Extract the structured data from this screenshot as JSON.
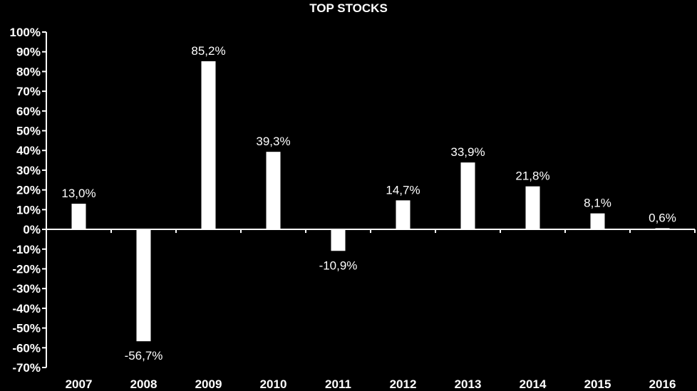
{
  "chart_data": {
    "type": "bar",
    "title": "TOP STOCKS",
    "xlabel": "",
    "ylabel": "",
    "categories": [
      "2007",
      "2008",
      "2009",
      "2010",
      "2011",
      "2012",
      "2013",
      "2014",
      "2015",
      "2016"
    ],
    "values": [
      13.0,
      -56.7,
      85.2,
      39.3,
      -10.9,
      14.7,
      33.9,
      21.8,
      8.1,
      0.6
    ],
    "data_labels": [
      "13,0%",
      "-56,7%",
      "85,2%",
      "39,3%",
      "-10,9%",
      "14,7%",
      "33,9%",
      "21,8%",
      "8,1%",
      "0,6%"
    ],
    "ylim": [
      -70,
      100
    ],
    "yticks": [
      100,
      90,
      80,
      70,
      60,
      50,
      40,
      30,
      20,
      10,
      0,
      -10,
      -20,
      -30,
      -40,
      -50,
      -60,
      -70
    ],
    "ytick_labels": [
      "100%",
      "90%",
      "80%",
      "70%",
      "60%",
      "50%",
      "40%",
      "30%",
      "20%",
      "10%",
      "0%",
      "-10%",
      "-20%",
      "-30%",
      "-40%",
      "-50%",
      "-60%",
      "-70%"
    ],
    "grid": false,
    "legend": "none",
    "colors": {
      "background": "#000000",
      "bars": "#ffffff",
      "axis": "#ffffff",
      "text": "#ffffff"
    }
  }
}
